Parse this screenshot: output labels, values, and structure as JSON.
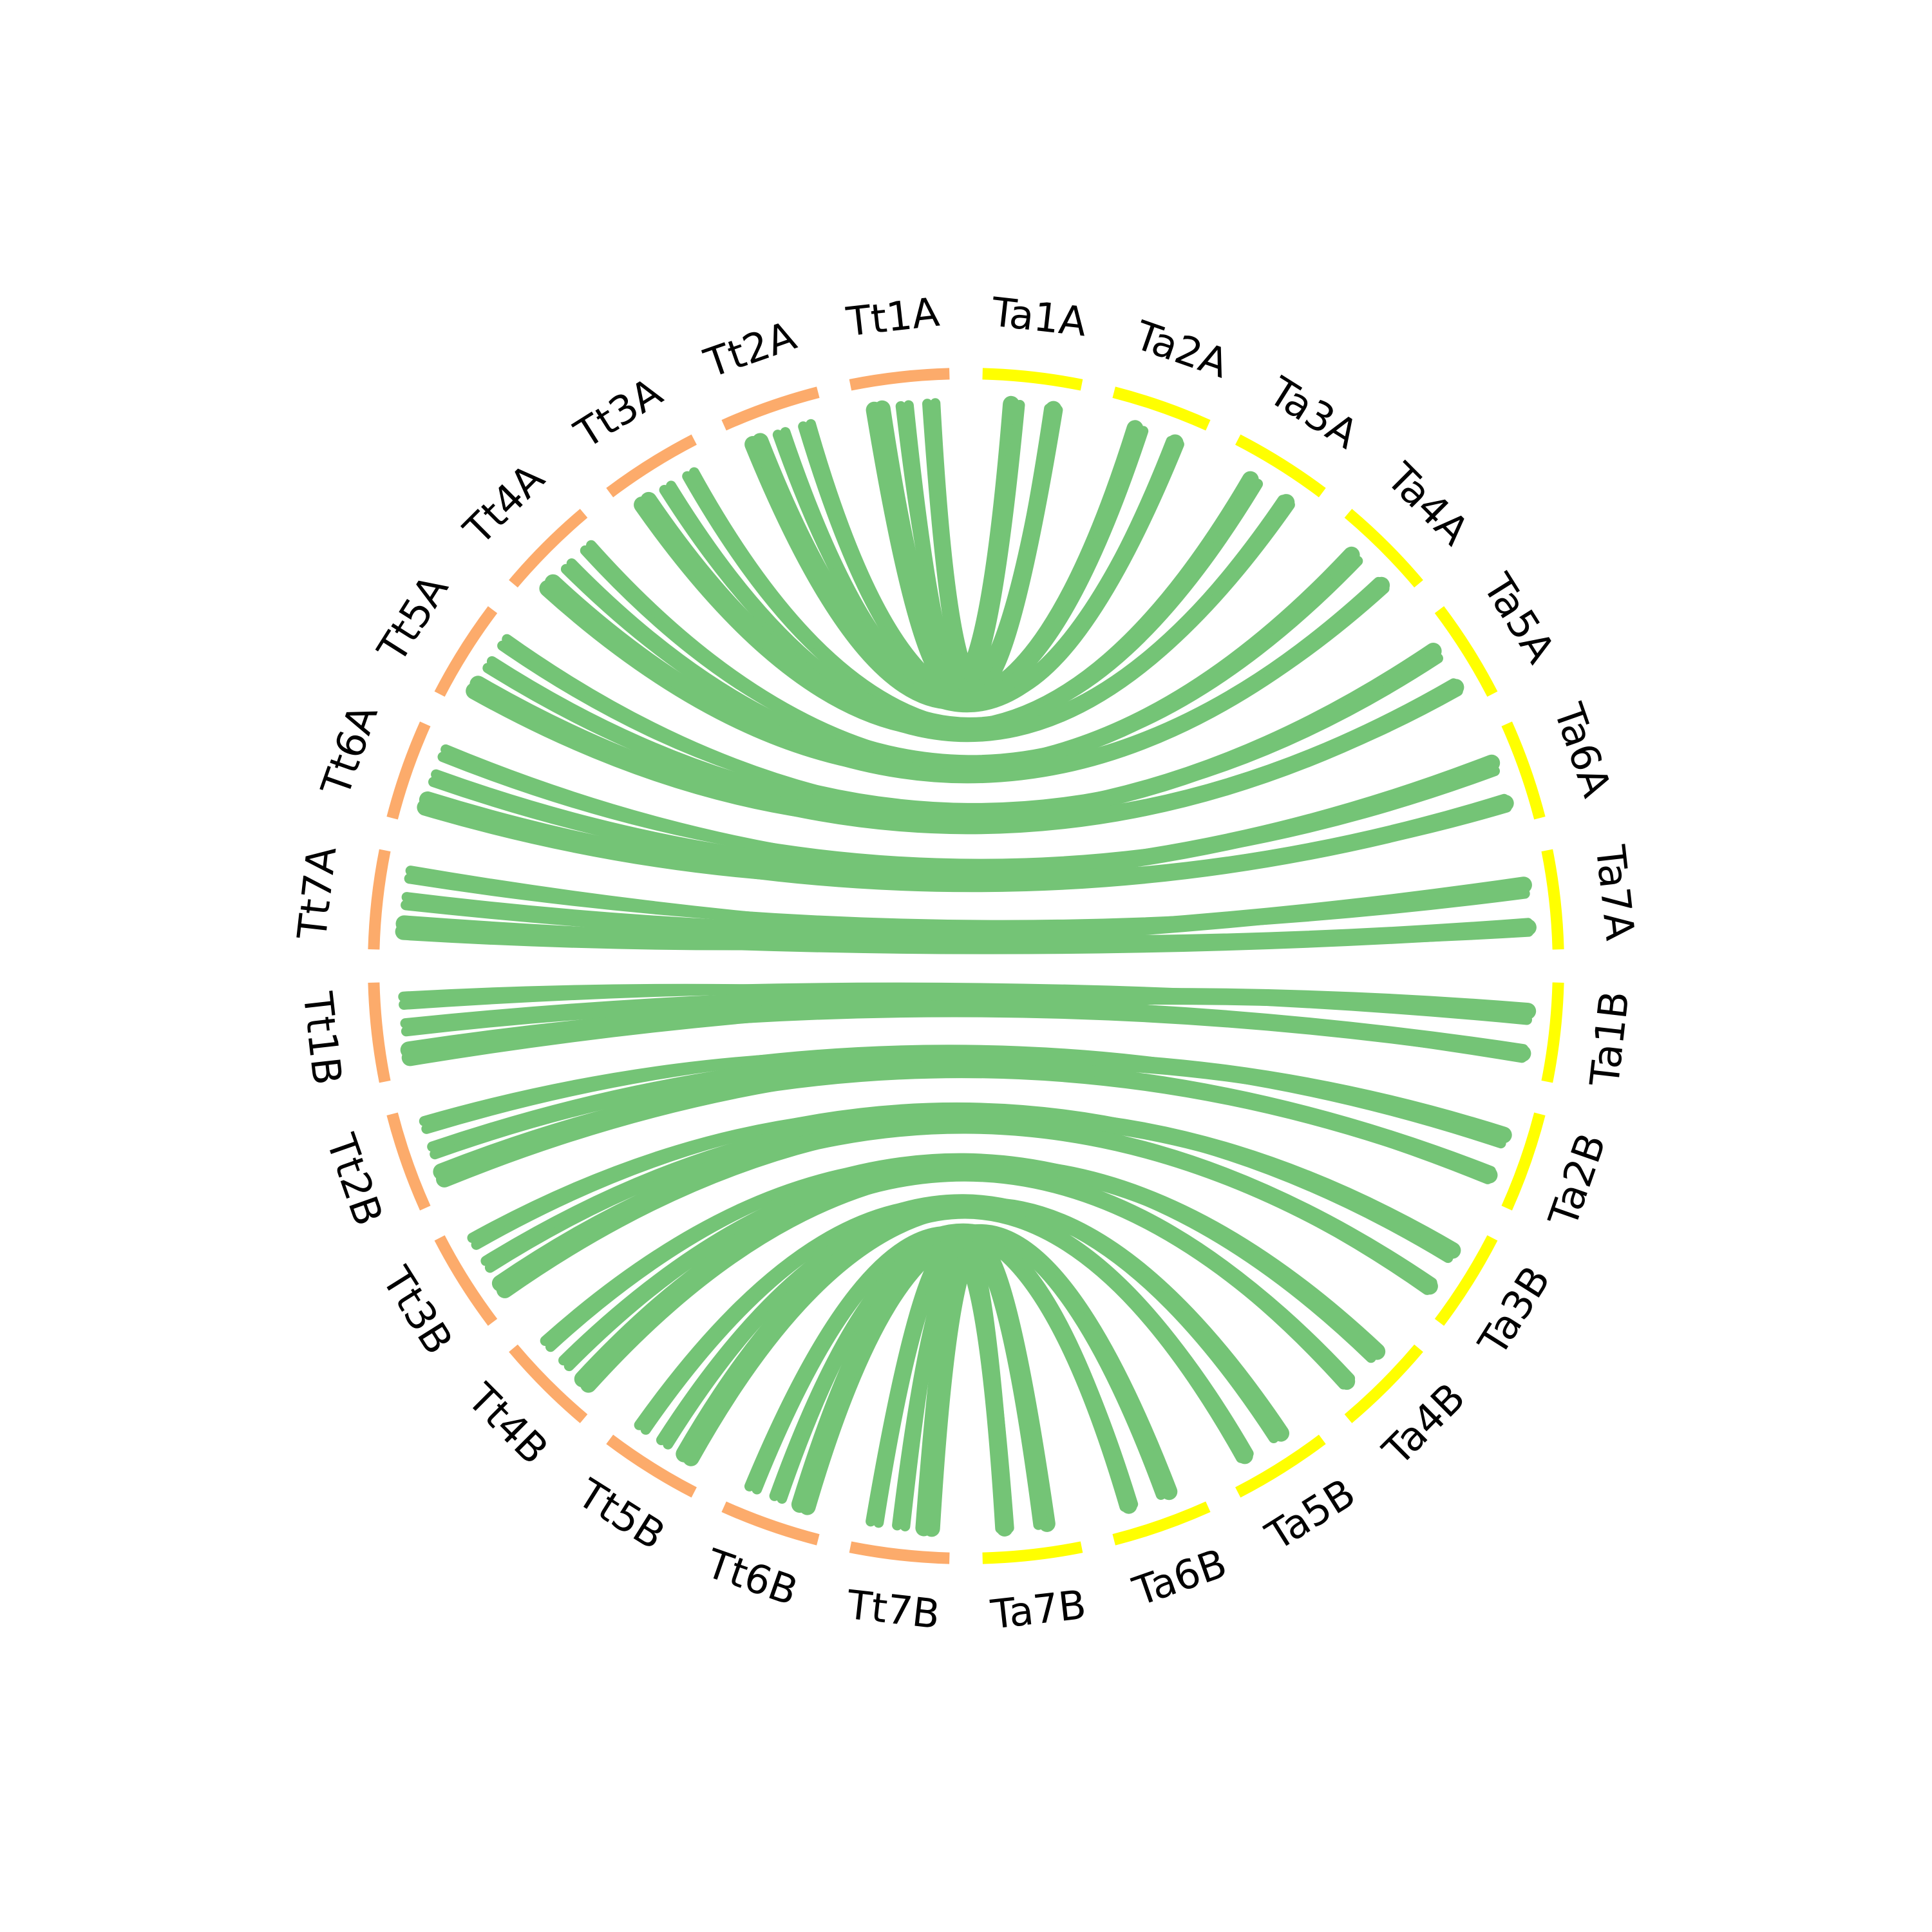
{
  "chart_data": {
    "type": "circos",
    "colors": {
      "tt_chromosomes": "#fcab6b",
      "ta_chromosomes": "#ffff00",
      "links": "#74c476"
    },
    "chromosomes": [
      {
        "id": "Ta1A",
        "label": "Ta1A",
        "group": "Ta"
      },
      {
        "id": "Ta2A",
        "label": "Ta2A",
        "group": "Ta"
      },
      {
        "id": "Ta3A",
        "label": "Ta3A",
        "group": "Ta"
      },
      {
        "id": "Ta4A",
        "label": "Ta4A",
        "group": "Ta"
      },
      {
        "id": "Ta5A",
        "label": "Ta5A",
        "group": "Ta"
      },
      {
        "id": "Ta6A",
        "label": "Ta6A",
        "group": "Ta"
      },
      {
        "id": "Ta7A",
        "label": "Ta7A",
        "group": "Ta"
      },
      {
        "id": "Ta1B",
        "label": "Ta1B",
        "group": "Ta"
      },
      {
        "id": "Ta2B",
        "label": "Ta2B",
        "group": "Ta"
      },
      {
        "id": "Ta3B",
        "label": "Ta3B",
        "group": "Ta"
      },
      {
        "id": "Ta4B",
        "label": "Ta4B",
        "group": "Ta"
      },
      {
        "id": "Ta5B",
        "label": "Ta5B",
        "group": "Ta"
      },
      {
        "id": "Ta6B",
        "label": "Ta6B",
        "group": "Ta"
      },
      {
        "id": "Ta7B",
        "label": "Ta7B",
        "group": "Ta"
      },
      {
        "id": "Tt7B",
        "label": "Tt7B",
        "group": "Tt"
      },
      {
        "id": "Tt6B",
        "label": "Tt6B",
        "group": "Tt"
      },
      {
        "id": "Tt5B",
        "label": "Tt5B",
        "group": "Tt"
      },
      {
        "id": "Tt4B",
        "label": "Tt4B",
        "group": "Tt"
      },
      {
        "id": "Tt3B",
        "label": "Tt3B",
        "group": "Tt"
      },
      {
        "id": "Tt2B",
        "label": "Tt2B",
        "group": "Tt"
      },
      {
        "id": "Tt1B",
        "label": "Tt1B",
        "group": "Tt"
      },
      {
        "id": "Tt7A",
        "label": "Tt7A",
        "group": "Tt"
      },
      {
        "id": "Tt6A",
        "label": "Tt6A",
        "group": "Tt"
      },
      {
        "id": "Tt5A",
        "label": "Tt5A",
        "group": "Tt"
      },
      {
        "id": "Tt4A",
        "label": "Tt4A",
        "group": "Tt"
      },
      {
        "id": "Tt3A",
        "label": "Tt3A",
        "group": "Tt"
      },
      {
        "id": "Tt2A",
        "label": "Tt2A",
        "group": "Tt"
      },
      {
        "id": "Tt1A",
        "label": "Tt1A",
        "group": "Tt"
      }
    ],
    "links": [
      {
        "from": "Tt1A",
        "to": "Ta1A"
      },
      {
        "from": "Tt2A",
        "to": "Ta2A"
      },
      {
        "from": "Tt3A",
        "to": "Ta3A"
      },
      {
        "from": "Tt4A",
        "to": "Ta4A"
      },
      {
        "from": "Tt5A",
        "to": "Ta5A"
      },
      {
        "from": "Tt6A",
        "to": "Ta6A"
      },
      {
        "from": "Tt7A",
        "to": "Ta7A"
      },
      {
        "from": "Tt1B",
        "to": "Ta1B"
      },
      {
        "from": "Tt2B",
        "to": "Ta2B"
      },
      {
        "from": "Tt3B",
        "to": "Ta3B"
      },
      {
        "from": "Tt4B",
        "to": "Ta4B"
      },
      {
        "from": "Tt5B",
        "to": "Ta5B"
      },
      {
        "from": "Tt6B",
        "to": "Ta6B"
      },
      {
        "from": "Tt7B",
        "to": "Ta7B"
      }
    ]
  }
}
